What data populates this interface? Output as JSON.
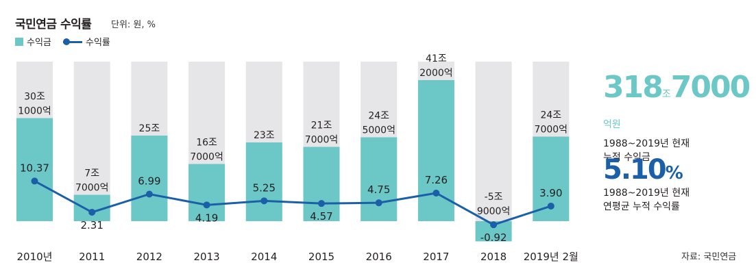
{
  "title": "국민연금 수익률",
  "unit": "단위: 원, %",
  "legend": {
    "bar": "수익금",
    "line": "수익률"
  },
  "colors": {
    "bar": "#6cc7c7",
    "background_bar": "#e6e6e8",
    "line": "#1a5fa8",
    "text": "#231f20"
  },
  "chart_data": {
    "type": "bar",
    "categories": [
      "2010년",
      "2011",
      "2012",
      "2013",
      "2014",
      "2015",
      "2016",
      "2017",
      "2018",
      "2019년 2월"
    ],
    "series": [
      {
        "name": "수익금",
        "unit": "조원",
        "values": [
          30.1,
          7.7,
          25,
          16.7,
          23,
          21.7,
          24.5,
          41.2,
          -5.9,
          24.7
        ],
        "labels": [
          [
            "30조",
            "1000억"
          ],
          [
            "7조",
            "7000억"
          ],
          [
            "25조"
          ],
          [
            "16조",
            "7000억"
          ],
          [
            "23조"
          ],
          [
            "21조",
            "7000억"
          ],
          [
            "24조",
            "5000억"
          ],
          [
            "41조",
            "2000억"
          ],
          [
            "-5조",
            "9000억"
          ],
          [
            "24조",
            "7000억"
          ]
        ]
      },
      {
        "name": "수익률",
        "unit": "%",
        "type": "line",
        "values": [
          10.37,
          2.31,
          6.99,
          4.19,
          5.25,
          4.57,
          4.75,
          7.26,
          -0.92,
          3.9
        ],
        "labels": [
          "10.37",
          "2.31",
          "6.99",
          "4.19",
          "5.25",
          "4.57",
          "4.75",
          "7.26",
          "-0.92",
          "3.90"
        ]
      }
    ]
  },
  "summary": {
    "total": {
      "number1": "318",
      "unit1": "조",
      "number2": "7000",
      "unit2": "억원",
      "line1": "1988~2019년 현재",
      "line2": "누적 수익금"
    },
    "rate": {
      "number": "5.10",
      "unit": "%",
      "line1": "1988~2019년 현재",
      "line2": "연평균 누적 수익률"
    }
  },
  "source": "자료: 국민연금"
}
